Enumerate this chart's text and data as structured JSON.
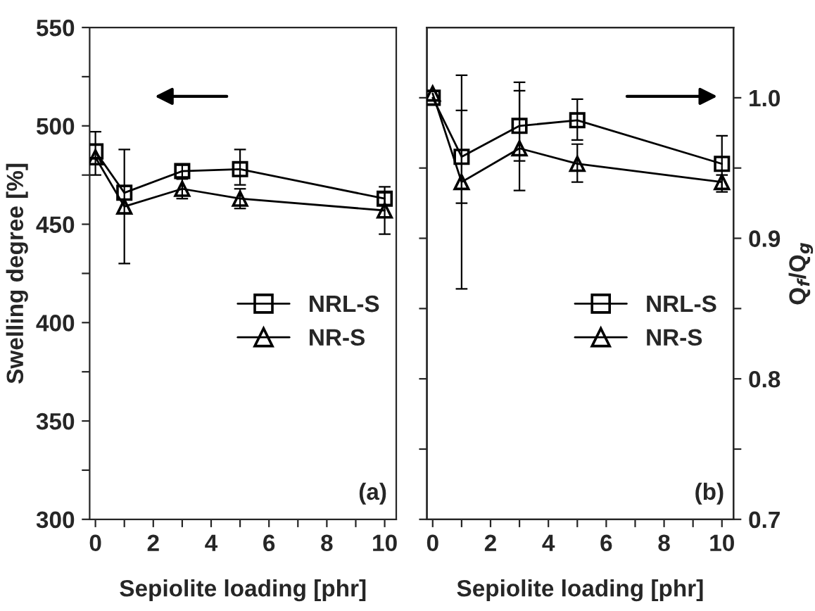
{
  "chart_data": [
    {
      "type": "line",
      "xlabel": "Sepiolite loading [phr]",
      "ylabel": "Swelling degree [%]",
      "annotations": [
        "(a)"
      ],
      "x": [
        0,
        1,
        3,
        5,
        10
      ],
      "xlim": [
        -0.2,
        10.4
      ],
      "xticks": [
        0,
        {
          "value": 1,
          "label": null
        },
        2,
        {
          "value": 3,
          "label": null
        },
        4,
        {
          "value": 5,
          "label": null
        },
        6,
        {
          "value": 7,
          "label": null
        },
        8,
        {
          "value": 9,
          "label": null
        },
        10
      ],
      "ylim": [
        300,
        550
      ],
      "yticks": [
        300,
        {
          "value": 325,
          "label": null
        },
        350,
        {
          "value": 375,
          "label": null
        },
        400,
        {
          "value": 425,
          "label": null
        },
        450,
        {
          "value": 475,
          "label": null
        },
        500,
        {
          "value": 525,
          "label": null
        },
        550
      ],
      "legend": "right",
      "grid": false,
      "series": [
        {
          "name": "NRL-S",
          "color": "#000000",
          "marker": "square",
          "values": [
            487,
            466,
            477,
            478,
            463
          ],
          "errors": [
            [
              475,
              497
            ],
            null,
            3,
            [
              470,
              488
            ],
            3
          ]
        },
        {
          "name": "NR-S",
          "color": "#000000",
          "marker": "triangle",
          "values": [
            484,
            459,
            468,
            463,
            457
          ],
          "errors": [
            null,
            [
              430,
              488
            ],
            5,
            [
              458,
              468
            ],
            [
              445,
              469
            ]
          ]
        }
      ]
    },
    {
      "type": "line",
      "xlabel": "Sepiolite loading [phr]",
      "y2label": "Q$_{f}$/Q$_{g}$",
      "annotations": [
        "(b)"
      ],
      "x": [
        0,
        1,
        3,
        5,
        10
      ],
      "xlim": [
        -0.2,
        10.4
      ],
      "xticks": [
        0,
        {
          "value": 1,
          "label": null
        },
        2,
        {
          "value": 3,
          "label": null
        },
        4,
        {
          "value": 5,
          "label": null
        },
        6,
        {
          "value": 7,
          "label": null
        },
        8,
        {
          "value": 9,
          "label": null
        },
        10
      ],
      "y2lim": [
        0.7,
        1.05
      ],
      "y2ticks": [
        {
          "value": 0.7,
          "label": "0.7"
        },
        {
          "value": 0.75,
          "label": null
        },
        {
          "value": 0.8,
          "label": "0.8"
        },
        {
          "value": 0.85,
          "label": null
        },
        {
          "value": 0.9,
          "label": "0.9"
        },
        {
          "value": 0.95,
          "label": null
        },
        {
          "value": 1.0,
          "label": "1.0"
        }
      ],
      "legend": "right",
      "grid": false,
      "series": [
        {
          "name": "NRL-S",
          "color": "#000000",
          "marker": "square",
          "axis": "y2",
          "values": [
            1.0,
            0.958,
            0.98,
            0.984,
            0.953
          ],
          "errors": [
            null,
            [
              0.925,
              0.991
            ],
            [
              0.955,
              1.005
            ],
            [
              0.97,
              0.999
            ],
            [
              0.933,
              0.973
            ]
          ]
        },
        {
          "name": "NR-S",
          "color": "#000000",
          "marker": "triangle",
          "axis": "y2",
          "values": [
            1.003,
            0.94,
            0.964,
            0.953,
            0.94
          ],
          "errors": [
            null,
            [
              0.864,
              1.016
            ],
            [
              0.934,
              1.011
            ],
            [
              0.94,
              0.967
            ],
            0.005
          ]
        }
      ]
    }
  ]
}
